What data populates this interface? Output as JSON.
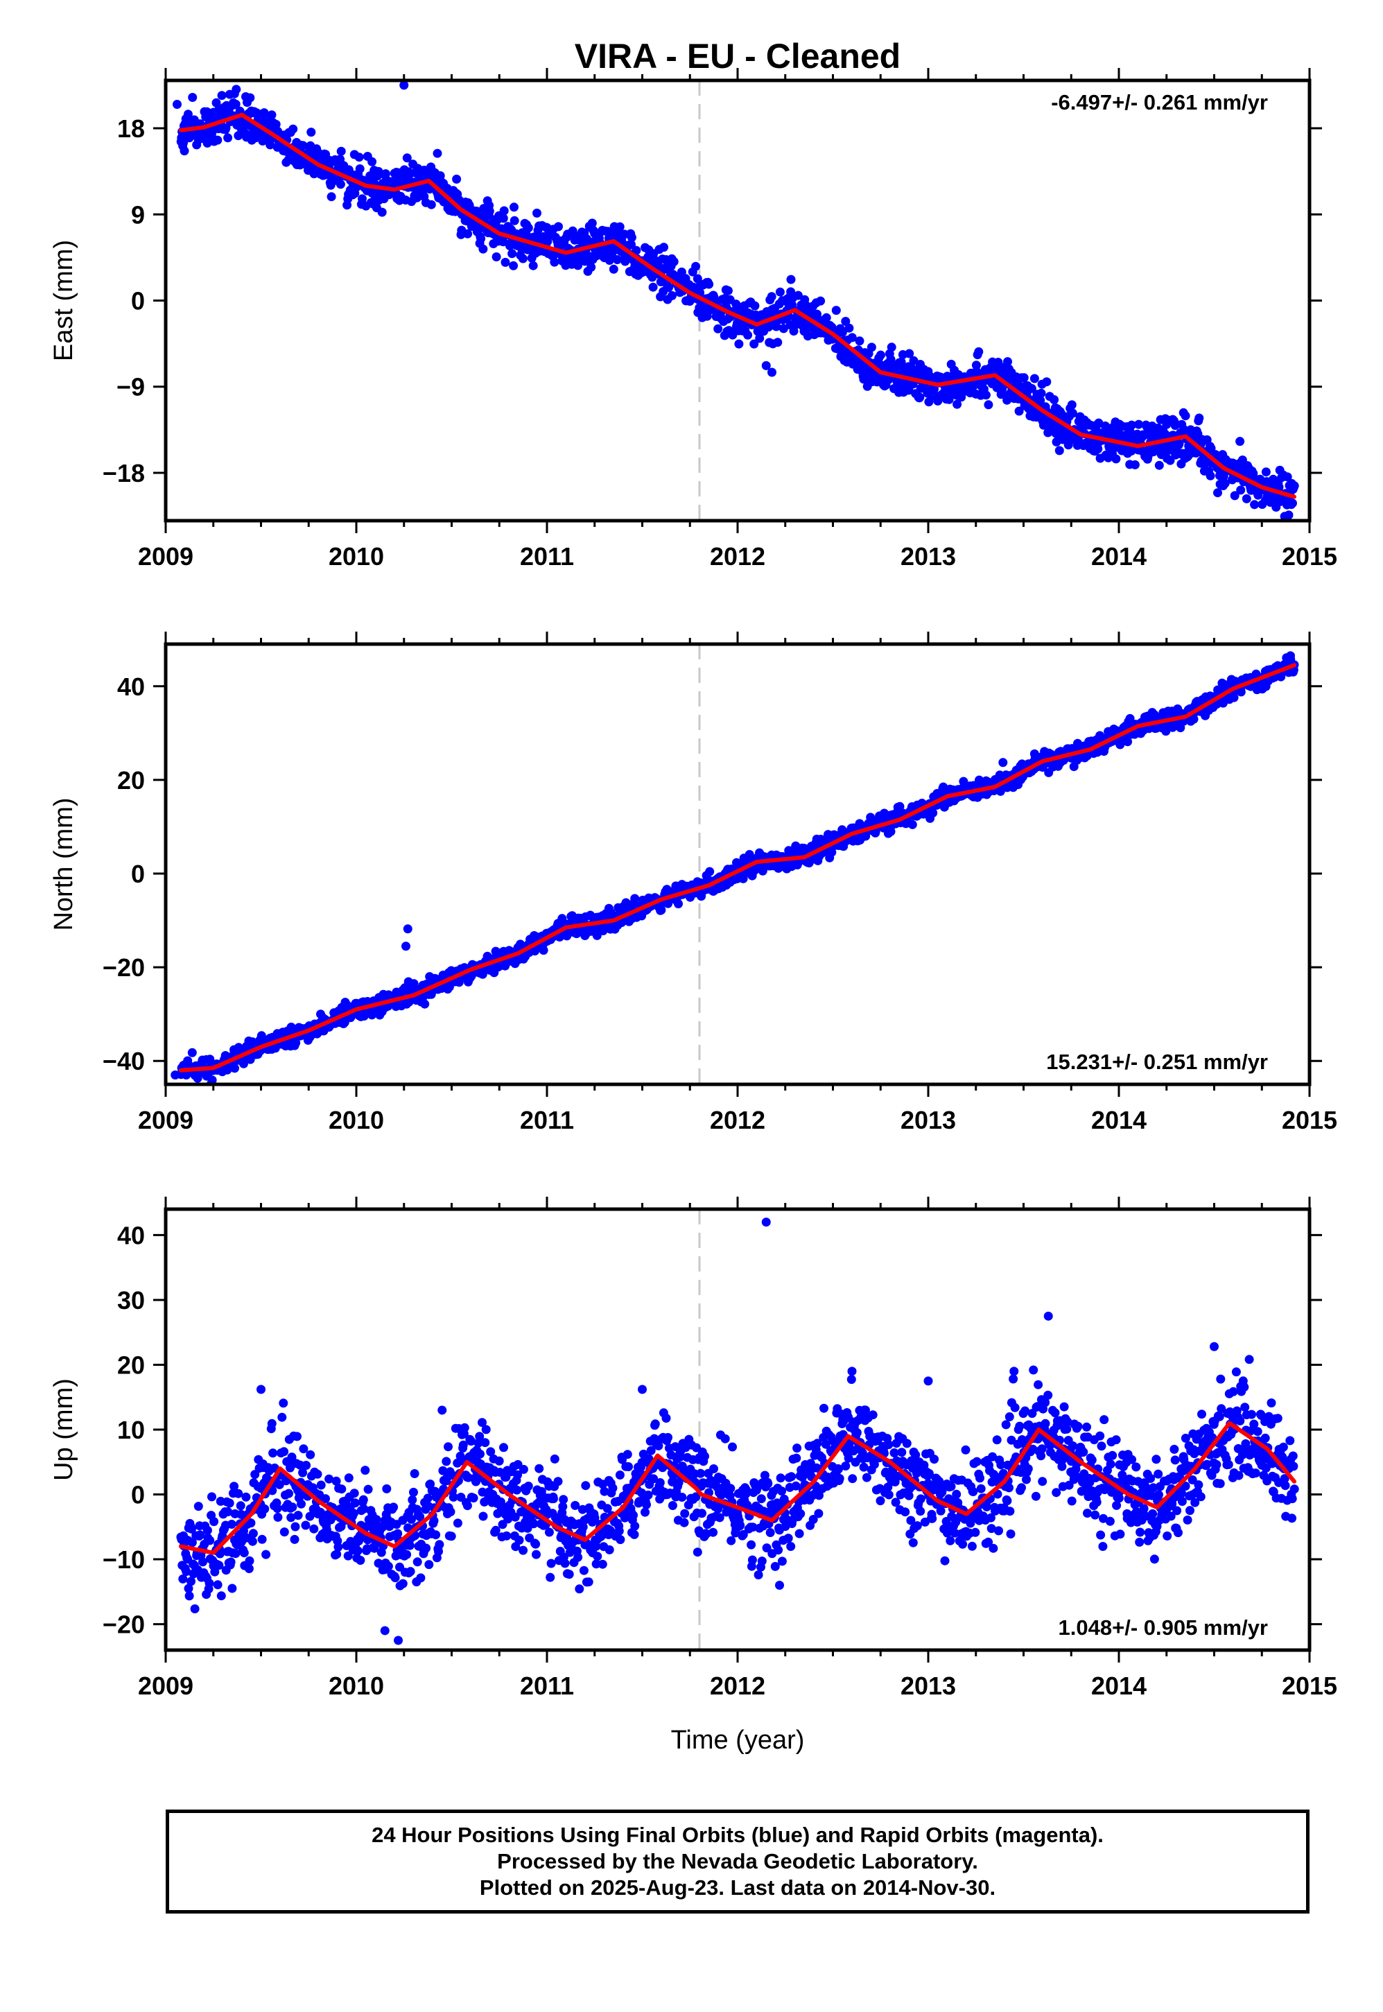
{
  "title": "VIRA  - EU - Cleaned",
  "footer": {
    "line1": "24 Hour Positions Using Final Orbits (blue) and Rapid Orbits (magenta).",
    "line2": "Processed by the Nevada Geodetic Laboratory.",
    "line3": "Plotted on 2025-Aug-23. Last data on 2014-Nov-30."
  },
  "colors": {
    "final_orbits": "#0000ff",
    "model": "#ff0000",
    "equipment_change": "#c8c8c8"
  },
  "chart_data": [
    {
      "type": "scatter",
      "ylabel": "East (mm)",
      "rate": "-6.497+/- 0.261 mm/yr",
      "rate_position": "top-right",
      "xlim": [
        2009,
        2015
      ],
      "ylim": [
        -23,
        23
      ],
      "yticks": [
        -18,
        -9,
        0,
        9,
        18
      ],
      "ytick_labels": [
        "−18",
        "−9",
        "0",
        "9",
        "18"
      ],
      "xticks": [
        2009,
        2010,
        2011,
        2012,
        2013,
        2014,
        2015
      ],
      "xtick_labels": [
        "2009",
        "2010",
        "2011",
        "2012",
        "2013",
        "2014",
        "2015"
      ],
      "equipment_change": 2011.8,
      "grid": false,
      "scatter_noise": 1.1,
      "series": [
        {
          "kind": "model",
          "x": [
            2009.08,
            2009.2,
            2009.4,
            2009.55,
            2009.8,
            2010.05,
            2010.2,
            2010.38,
            2010.55,
            2010.75,
            2011.1,
            2011.35,
            2011.55,
            2011.75,
            2011.95,
            2012.1,
            2012.3,
            2012.5,
            2012.75,
            2013.05,
            2013.35,
            2013.6,
            2013.8,
            2014.1,
            2014.35,
            2014.55,
            2014.75,
            2014.92
          ],
          "y": [
            17.8,
            18.1,
            19.4,
            17.5,
            14.2,
            12,
            11.6,
            12.5,
            9.5,
            7,
            5,
            6.2,
            3.4,
            0.8,
            -1.2,
            -2.5,
            -1,
            -3.5,
            -7.5,
            -8.8,
            -7.8,
            -11.5,
            -14,
            -15.2,
            -14.2,
            -17.5,
            -19.5,
            -20.5
          ]
        },
        {
          "kind": "data",
          "x": [
            2009.06,
            2009.42,
            2010.25,
            2012.28,
            2012.18,
            2014.48,
            2009.72,
            2012.15
          ],
          "y": [
            20.5,
            21.3,
            22.5,
            2.2,
            -7.5,
            -16.6,
            16.2,
            -6.8
          ]
        }
      ]
    },
    {
      "type": "scatter",
      "ylabel": "North (mm)",
      "rate": "15.231+/- 0.251 mm/yr",
      "rate_position": "bottom-right",
      "xlim": [
        2009,
        2015
      ],
      "ylim": [
        -45,
        49
      ],
      "yticks": [
        -40,
        -20,
        0,
        20,
        40
      ],
      "ytick_labels": [
        "−40",
        "−20",
        "0",
        "20",
        "40"
      ],
      "xticks": [
        2009,
        2010,
        2011,
        2012,
        2013,
        2014,
        2015
      ],
      "xtick_labels": [
        "2009",
        "2010",
        "2011",
        "2012",
        "2013",
        "2014",
        "2015"
      ],
      "equipment_change": 2011.8,
      "grid": false,
      "scatter_noise": 1.0,
      "series": [
        {
          "kind": "model",
          "x": [
            2009.08,
            2009.25,
            2009.5,
            2009.75,
            2010,
            2010.3,
            2010.6,
            2010.85,
            2011.1,
            2011.35,
            2011.6,
            2011.85,
            2012.1,
            2012.35,
            2012.6,
            2012.85,
            2013.1,
            2013.35,
            2013.6,
            2013.85,
            2014.1,
            2014.35,
            2014.6,
            2014.92
          ],
          "y": [
            -42,
            -41.5,
            -37,
            -33.5,
            -29,
            -26,
            -20.5,
            -17,
            -11.5,
            -10,
            -5.5,
            -2.5,
            2.5,
            3.5,
            8.5,
            11.5,
            16.5,
            18.5,
            24,
            26.5,
            31.5,
            33.5,
            39.5,
            44.5
          ]
        },
        {
          "kind": "data",
          "x": [
            2010.27,
            2010.26,
            2014.9,
            2010.52,
            2009.05
          ],
          "y": [
            -11.8,
            -15.5,
            46.5,
            -22.5,
            -43
          ]
        }
      ]
    },
    {
      "type": "scatter",
      "ylabel": "Up (mm)",
      "xlabel": "Time (year)",
      "rate": "1.048+/- 0.905 mm/yr",
      "rate_position": "bottom-right",
      "xlim": [
        2009,
        2015
      ],
      "ylim": [
        -24,
        44
      ],
      "yticks": [
        -20,
        -10,
        0,
        10,
        20,
        30,
        40
      ],
      "ytick_labels": [
        "−20",
        "−10",
        "0",
        "10",
        "20",
        "30",
        "40"
      ],
      "xticks": [
        2009,
        2010,
        2011,
        2012,
        2013,
        2014,
        2015
      ],
      "xtick_labels": [
        "2009",
        "2010",
        "2011",
        "2012",
        "2013",
        "2014",
        "2015"
      ],
      "equipment_change": 2011.8,
      "grid": false,
      "scatter_noise": 3.6,
      "series": [
        {
          "kind": "model",
          "x": [
            2009.08,
            2009.25,
            2009.45,
            2009.6,
            2009.8,
            2010.05,
            2010.2,
            2010.4,
            2010.58,
            2010.8,
            2011.05,
            2011.2,
            2011.4,
            2011.58,
            2011.78,
            2011.81,
            2012.0,
            2012.18,
            2012.4,
            2012.58,
            2012.8,
            2013.05,
            2013.2,
            2013.4,
            2013.58,
            2013.8,
            2014.05,
            2014.2,
            2014.4,
            2014.58,
            2014.78,
            2014.92
          ],
          "y": [
            -8,
            -9,
            -3,
            4,
            -1,
            -6,
            -8,
            -3,
            5,
            0,
            -5,
            -7,
            -2,
            6,
            1,
            0,
            -2,
            -4,
            2,
            9,
            5,
            -1,
            -3,
            2,
            10,
            5,
            0,
            -2,
            4,
            11,
            7,
            2
          ]
        },
        {
          "kind": "data",
          "x": [
            2012.15,
            2013.63,
            2010.22,
            2014.5,
            2009.5,
            2013.0,
            2011.5,
            2012.6,
            2013.45,
            2010.15,
            2009.12,
            2014.65,
            2012.22,
            2010.45
          ],
          "y": [
            42,
            27.5,
            -22.5,
            22.8,
            16.2,
            17.5,
            16.2,
            19,
            19,
            -21,
            -14.5,
            17,
            -14,
            13
          ]
        }
      ]
    }
  ]
}
